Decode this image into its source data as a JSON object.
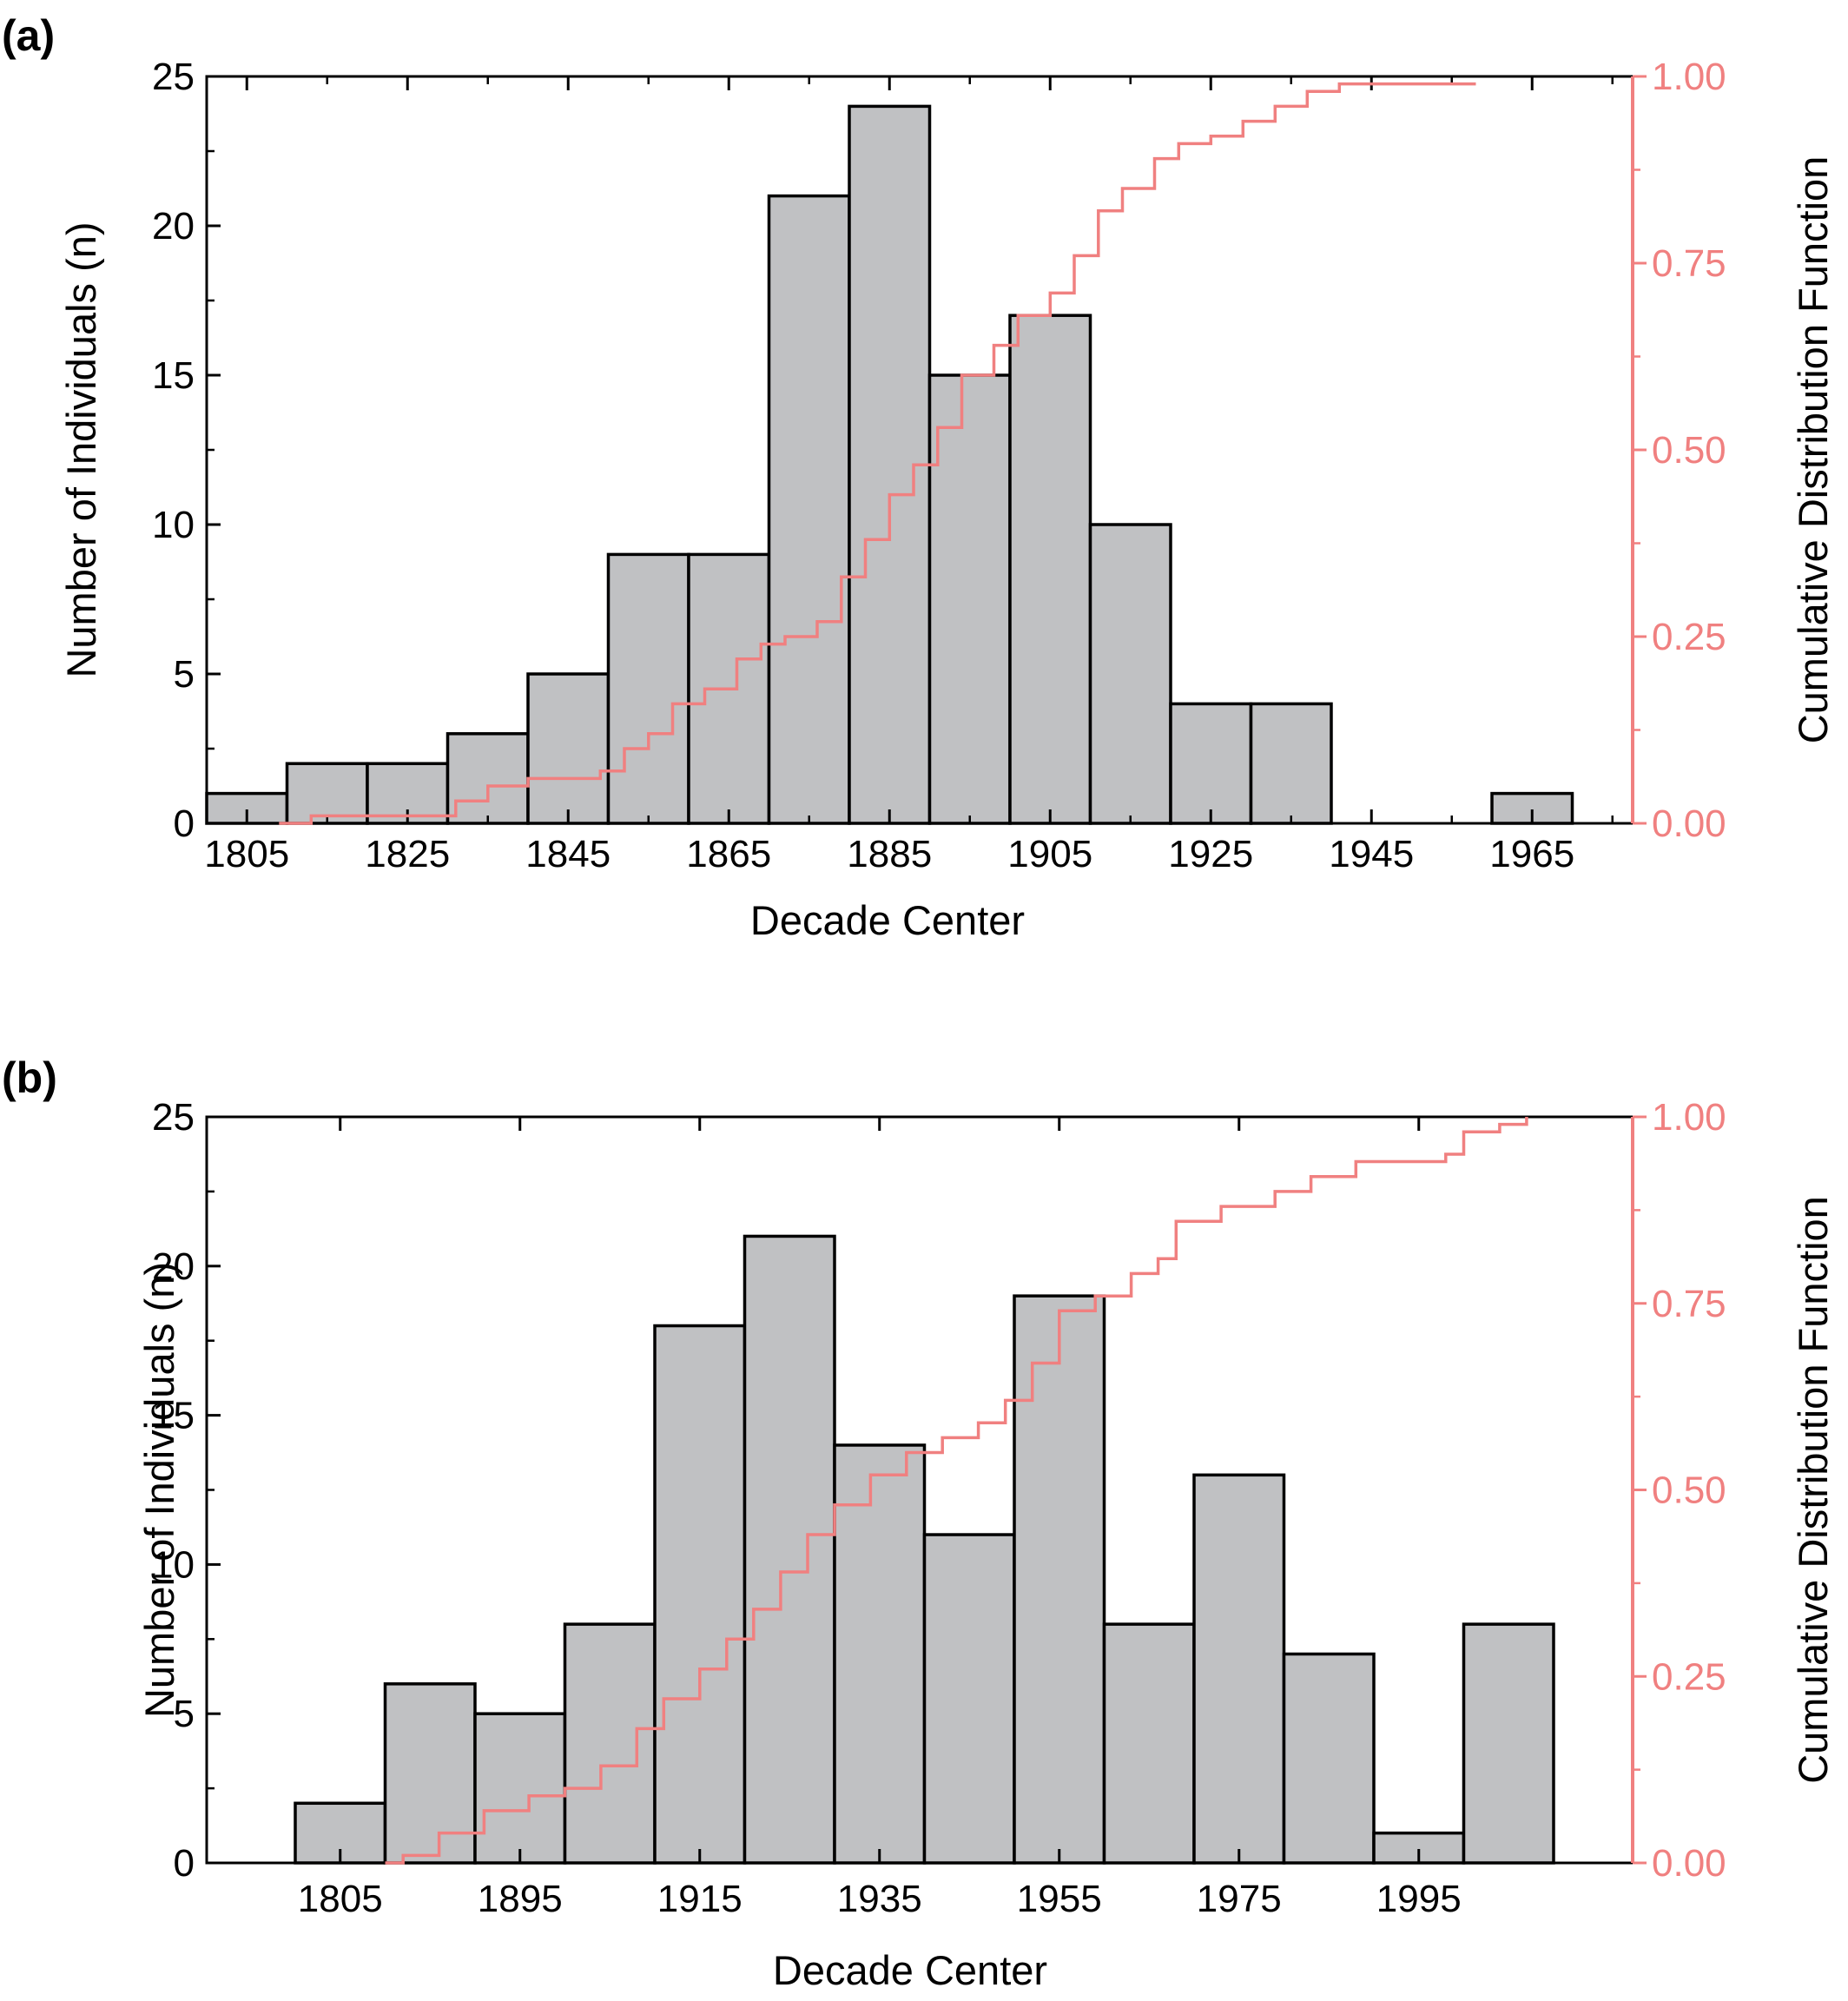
{
  "colors": {
    "bar_fill": "#c0c1c3",
    "bar_edge": "#000000",
    "cdf_line": "#f08080",
    "axis": "#000000"
  },
  "chart_data": [
    {
      "panel_label": "(a)",
      "type": "bar",
      "xlabel": "Decade Center",
      "ylabel": "Number of Individuals (n)",
      "y2label": "Cumulative Distribution Function",
      "x_ticks": [
        "1805",
        "1825",
        "1845",
        "1865",
        "1885",
        "1905",
        "1925",
        "1945",
        "1965"
      ],
      "ylim": [
        0,
        25
      ],
      "y_ticks": [
        "0",
        "5",
        "10",
        "15",
        "20",
        "25"
      ],
      "y2lim": [
        0,
        1
      ],
      "y2_ticks": [
        "0.00",
        "0.25",
        "0.50",
        "0.75",
        "1.00"
      ],
      "bins": [
        1805,
        1815,
        1825,
        1835,
        1845,
        1855,
        1865,
        1875,
        1885,
        1895,
        1905,
        1915,
        1925,
        1935,
        1945,
        1955,
        1965
      ],
      "values": [
        1,
        2,
        2,
        3,
        5,
        9,
        9,
        21,
        24,
        15,
        17,
        10,
        4,
        4,
        0,
        0,
        1
      ],
      "cdf": [
        [
          1809,
          0.0
        ],
        [
          1813,
          0.01
        ],
        [
          1829,
          0.01
        ],
        [
          1831,
          0.03
        ],
        [
          1835,
          0.05
        ],
        [
          1840,
          0.06
        ],
        [
          1849,
          0.07
        ],
        [
          1852,
          0.1
        ],
        [
          1855,
          0.12
        ],
        [
          1858,
          0.16
        ],
        [
          1862,
          0.18
        ],
        [
          1866,
          0.22
        ],
        [
          1869,
          0.24
        ],
        [
          1872,
          0.25
        ],
        [
          1876,
          0.27
        ],
        [
          1879,
          0.33
        ],
        [
          1882,
          0.38
        ],
        [
          1885,
          0.44
        ],
        [
          1888,
          0.48
        ],
        [
          1891,
          0.53
        ],
        [
          1894,
          0.6
        ],
        [
          1898,
          0.64
        ],
        [
          1901,
          0.68
        ],
        [
          1905,
          0.71
        ],
        [
          1908,
          0.76
        ],
        [
          1911,
          0.82
        ],
        [
          1914,
          0.85
        ],
        [
          1918,
          0.89
        ],
        [
          1921,
          0.91
        ],
        [
          1925,
          0.92
        ],
        [
          1929,
          0.94
        ],
        [
          1933,
          0.96
        ],
        [
          1937,
          0.98
        ],
        [
          1941,
          0.99
        ],
        [
          1948,
          0.99
        ],
        [
          1958,
          0.99
        ]
      ]
    },
    {
      "panel_label": "(b)",
      "type": "bar",
      "xlabel": "Decade Center",
      "ylabel": "Number of Individuals (n)",
      "y2label": "Cumulative Distribution Function",
      "x_ticks": [
        "1805",
        "1895",
        "1915",
        "1935",
        "1955",
        "1975",
        "1995"
      ],
      "ylim": [
        0,
        25
      ],
      "y_ticks": [
        "0",
        "5",
        "10",
        "15",
        "20",
        "25"
      ],
      "y2lim": [
        0,
        1
      ],
      "y2_ticks": [
        "0.00",
        "0.25",
        "0.50",
        "0.75",
        "1.00"
      ],
      "bins": [
        "1805",
        "1885",
        "1895",
        "1905",
        "1915",
        "1925",
        "1935",
        "1945",
        "1955",
        "1965",
        "1975",
        "1985",
        "1995",
        "2005"
      ],
      "values": [
        2,
        6,
        5,
        8,
        18,
        21,
        14,
        11,
        19,
        8,
        13,
        7,
        1,
        8
      ],
      "cdf": [
        [
          1,
          0.0
        ],
        [
          1.2,
          0.01
        ],
        [
          1.6,
          0.04
        ],
        [
          2.1,
          0.07
        ],
        [
          2.6,
          0.09
        ],
        [
          3.0,
          0.1
        ],
        [
          3.4,
          0.13
        ],
        [
          3.8,
          0.18
        ],
        [
          4.1,
          0.22
        ],
        [
          4.5,
          0.26
        ],
        [
          4.8,
          0.3
        ],
        [
          5.1,
          0.34
        ],
        [
          5.4,
          0.39
        ],
        [
          5.7,
          0.44
        ],
        [
          6.0,
          0.48
        ],
        [
          6.4,
          0.52
        ],
        [
          6.8,
          0.55
        ],
        [
          7.2,
          0.57
        ],
        [
          7.6,
          0.59
        ],
        [
          7.9,
          0.62
        ],
        [
          8.2,
          0.67
        ],
        [
          8.5,
          0.74
        ],
        [
          8.9,
          0.76
        ],
        [
          9.3,
          0.79
        ],
        [
          9.6,
          0.81
        ],
        [
          9.8,
          0.86
        ],
        [
          10.3,
          0.88
        ],
        [
          10.9,
          0.9
        ],
        [
          11.3,
          0.92
        ],
        [
          11.8,
          0.94
        ],
        [
          12.4,
          0.94
        ],
        [
          12.8,
          0.95
        ],
        [
          13.0,
          0.98
        ],
        [
          13.4,
          0.99
        ],
        [
          13.7,
          1.0
        ]
      ]
    }
  ]
}
